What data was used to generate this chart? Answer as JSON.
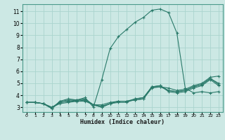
{
  "xlabel": "Humidex (Indice chaleur)",
  "background_color": "#cce8e4",
  "grid_color": "#aad4ce",
  "line_color": "#2a7a6a",
  "xlim": [
    -0.5,
    23.5
  ],
  "ylim": [
    2.6,
    11.6
  ],
  "xticks": [
    0,
    1,
    2,
    3,
    4,
    5,
    6,
    7,
    8,
    9,
    10,
    11,
    12,
    13,
    14,
    15,
    16,
    17,
    18,
    19,
    20,
    21,
    22,
    23
  ],
  "yticks": [
    3,
    4,
    5,
    6,
    7,
    8,
    9,
    10,
    11
  ],
  "lines": [
    {
      "x": [
        0,
        1,
        2,
        3,
        4,
        5,
        6,
        7,
        8,
        9,
        10,
        11,
        12,
        13,
        14,
        15,
        16,
        17,
        18,
        19,
        20,
        21,
        22,
        23
      ],
      "y": [
        3.4,
        3.4,
        3.3,
        2.9,
        3.5,
        3.7,
        3.6,
        3.8,
        3.0,
        5.3,
        7.9,
        8.9,
        9.5,
        10.1,
        10.5,
        11.1,
        11.2,
        10.9,
        9.2,
        4.6,
        4.2,
        4.3,
        4.2,
        4.3
      ]
    },
    {
      "x": [
        0,
        1,
        2,
        3,
        4,
        5,
        6,
        7,
        8,
        9,
        10,
        11,
        12,
        13,
        14,
        15,
        16,
        17,
        18,
        19,
        20,
        21,
        22,
        23
      ],
      "y": [
        3.4,
        3.4,
        3.3,
        2.9,
        3.5,
        3.6,
        3.6,
        3.6,
        3.2,
        3.2,
        3.4,
        3.5,
        3.5,
        3.6,
        3.7,
        4.7,
        4.7,
        4.6,
        4.4,
        4.5,
        4.8,
        5.0,
        5.5,
        5.6
      ]
    },
    {
      "x": [
        0,
        1,
        2,
        3,
        4,
        5,
        6,
        7,
        8,
        9,
        10,
        11,
        12,
        13,
        14,
        15,
        16,
        17,
        18,
        19,
        20,
        21,
        22,
        23
      ],
      "y": [
        3.4,
        3.4,
        3.3,
        2.9,
        3.4,
        3.5,
        3.6,
        3.7,
        3.2,
        3.0,
        3.3,
        3.5,
        3.5,
        3.6,
        3.7,
        4.6,
        4.7,
        4.4,
        4.3,
        4.4,
        4.7,
        4.9,
        5.4,
        5.0
      ]
    },
    {
      "x": [
        0,
        1,
        2,
        3,
        4,
        5,
        6,
        7,
        8,
        9,
        10,
        11,
        12,
        13,
        14,
        15,
        16,
        17,
        18,
        19,
        20,
        21,
        22,
        23
      ],
      "y": [
        3.4,
        3.4,
        3.3,
        3.0,
        3.4,
        3.5,
        3.5,
        3.6,
        3.2,
        3.1,
        3.3,
        3.5,
        3.5,
        3.7,
        3.8,
        4.7,
        4.8,
        4.4,
        4.3,
        4.4,
        4.7,
        4.9,
        5.4,
        4.9
      ]
    },
    {
      "x": [
        0,
        1,
        2,
        3,
        4,
        5,
        6,
        7,
        8,
        9,
        10,
        11,
        12,
        13,
        14,
        15,
        16,
        17,
        18,
        19,
        20,
        21,
        22,
        23
      ],
      "y": [
        3.4,
        3.4,
        3.3,
        3.0,
        3.3,
        3.4,
        3.5,
        3.5,
        3.2,
        3.0,
        3.3,
        3.4,
        3.4,
        3.7,
        3.8,
        4.7,
        4.8,
        4.3,
        4.2,
        4.3,
        4.6,
        4.8,
        5.3,
        4.8
      ]
    }
  ]
}
